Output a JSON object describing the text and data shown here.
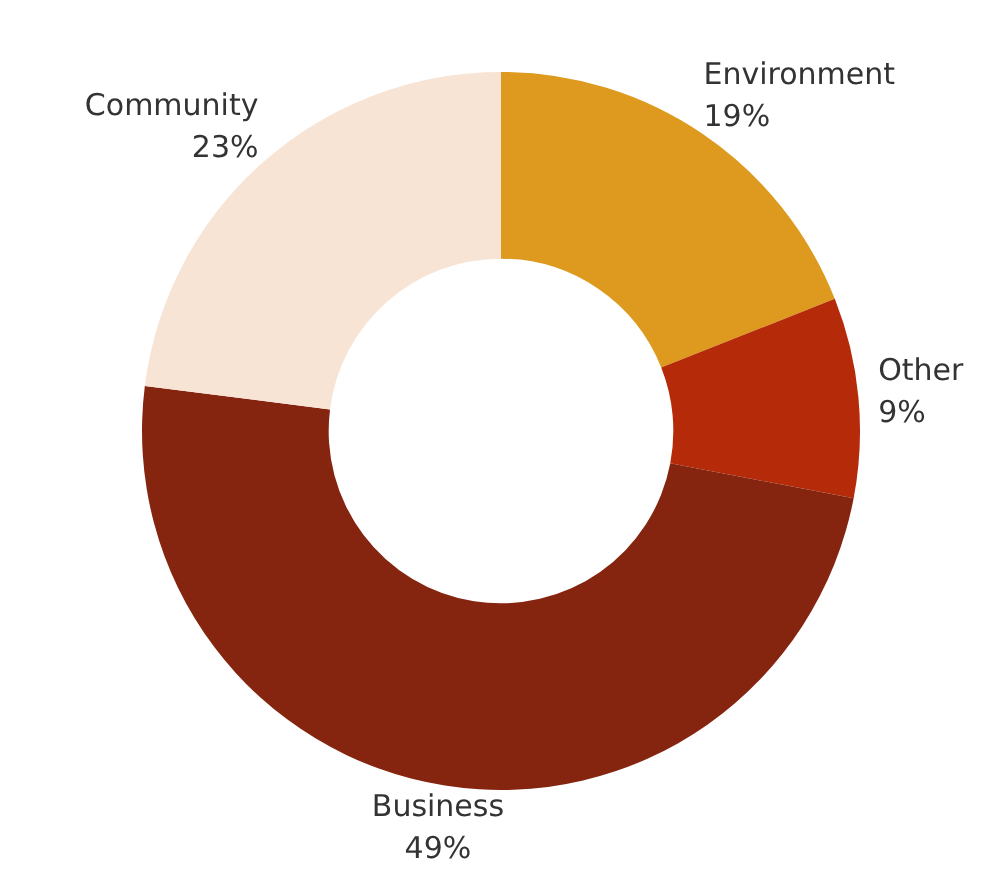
{
  "chart_data": {
    "type": "donut",
    "categories": [
      "Environment",
      "Other",
      "Business",
      "Community"
    ],
    "values": [
      19,
      9,
      49,
      23
    ],
    "value_labels": [
      "19%",
      "9%",
      "49%",
      "23%"
    ],
    "colors": [
      "#de9a1f",
      "#b52a08",
      "#852510",
      "#f8e4d5"
    ],
    "legend": false
  }
}
